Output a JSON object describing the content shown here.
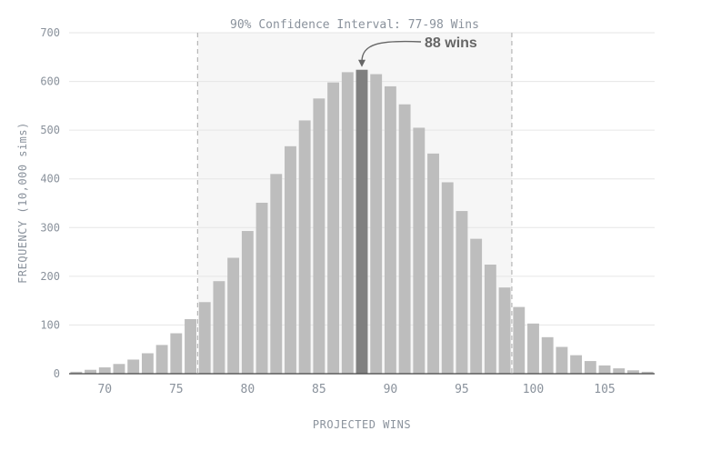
{
  "chart_data": {
    "type": "bar",
    "title": "90% Confidence Interval: 77-98 Wins",
    "xlabel": "PROJECTED WINS",
    "ylabel": "FREQUENCY (10,000 sims)",
    "ylim": [
      0,
      700
    ],
    "yticks": [
      0,
      100,
      200,
      300,
      400,
      500,
      600,
      700
    ],
    "xticks": [
      70,
      75,
      80,
      85,
      90,
      95,
      100,
      105
    ],
    "grid": true,
    "x": [
      68,
      69,
      70,
      71,
      72,
      73,
      74,
      75,
      76,
      77,
      78,
      79,
      80,
      81,
      82,
      83,
      84,
      85,
      86,
      87,
      88,
      89,
      90,
      91,
      92,
      93,
      94,
      95,
      96,
      97,
      98,
      99,
      100,
      101,
      102,
      103,
      104,
      105,
      106,
      107,
      108
    ],
    "values": [
      4,
      8,
      13,
      20,
      29,
      42,
      59,
      83,
      112,
      147,
      190,
      238,
      293,
      351,
      410,
      467,
      520,
      565,
      598,
      619,
      624,
      615,
      590,
      553,
      505,
      452,
      393,
      334,
      277,
      224,
      177,
      137,
      103,
      75,
      55,
      38,
      26,
      17,
      11,
      7,
      4
    ],
    "highlight_x": 88,
    "interval": [
      77,
      98
    ],
    "annotation": "88 wins",
    "colors": {
      "bar": "#bdbdbd",
      "highlight": "#808080",
      "band": "#f6f6f6",
      "grid": "#e6e6e6",
      "dashed": "#b5b5b5",
      "annotation": "#666666",
      "axis_text": "#8a929c"
    }
  }
}
